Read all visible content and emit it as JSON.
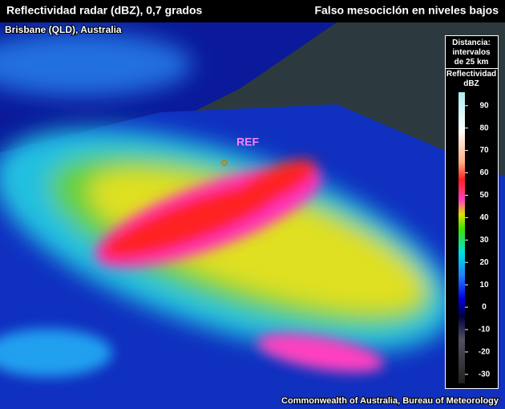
{
  "header": {
    "title": "Reflectividad radar (dBZ), 0,7 grados",
    "right_title": "Falso mesociclón en niveles bajos",
    "subtitle": "Brisbane (QLD), Australia"
  },
  "legend": {
    "distance": "Distancia: intervalos de 25 km",
    "title": "Reflectividad dBZ",
    "lim": [
      -34,
      96
    ],
    "ticks": [
      90,
      80,
      70,
      60,
      50,
      40,
      30,
      20,
      10,
      0,
      -10,
      -20,
      -30
    ]
  },
  "marker": "REF",
  "credit": "Commonwealth of Australia, Bureau of Meteorology"
}
